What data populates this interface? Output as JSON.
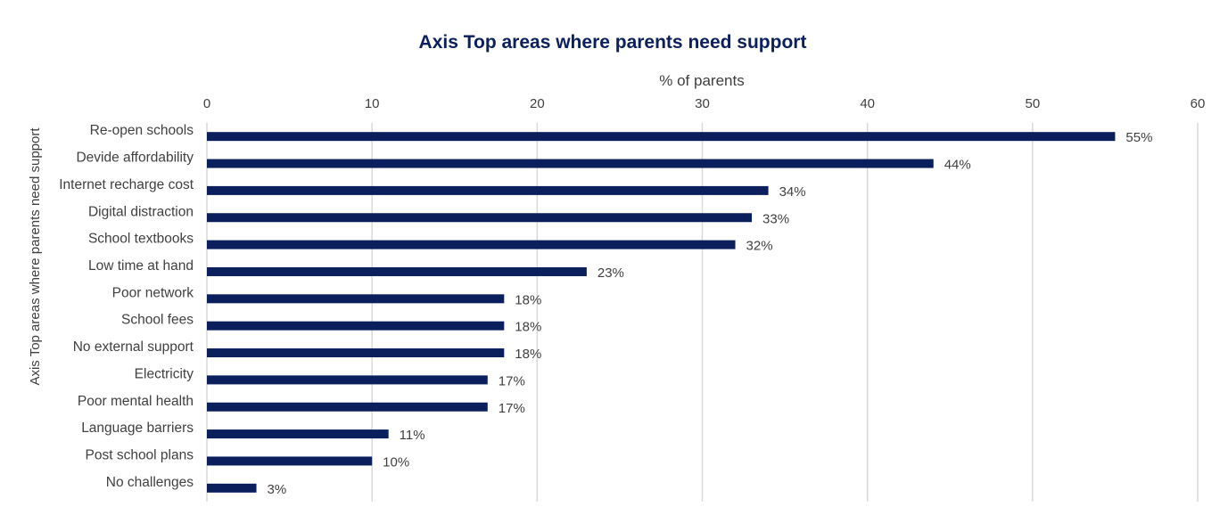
{
  "chart_data": {
    "type": "bar",
    "orientation": "horizontal",
    "title": "Axis Top areas where parents need support",
    "xlabel": "% of parents",
    "ylabel": "Axis Top areas where parents need support",
    "xlim": [
      0,
      60
    ],
    "xticks": [
      "0",
      "10",
      "20",
      "30",
      "40",
      "50",
      "60"
    ],
    "x_axis_position": "top",
    "grid": "vertical",
    "categories": [
      "Re-open schools",
      "Devide affordability",
      "Internet recharge cost",
      "Digital distraction",
      "School textbooks",
      "Low time at hand",
      "Poor network",
      "School fees",
      "No external support",
      "Electricity",
      "Poor mental health",
      "Language barriers",
      "Post school plans",
      "No challenges"
    ],
    "values": [
      55,
      44,
      34,
      33,
      32,
      23,
      18,
      18,
      18,
      17,
      17,
      11,
      10,
      3
    ],
    "data_labels": [
      "55%",
      "44%",
      "34%",
      "33%",
      "32%",
      "23%",
      "18%",
      "18%",
      "18%",
      "17%",
      "17%",
      "11%",
      "10%",
      "3%"
    ],
    "colors": {
      "bar": "#0a1f5c",
      "title": "#0a1f5c",
      "text": "#404040",
      "grid": "#d9d9d9"
    }
  }
}
